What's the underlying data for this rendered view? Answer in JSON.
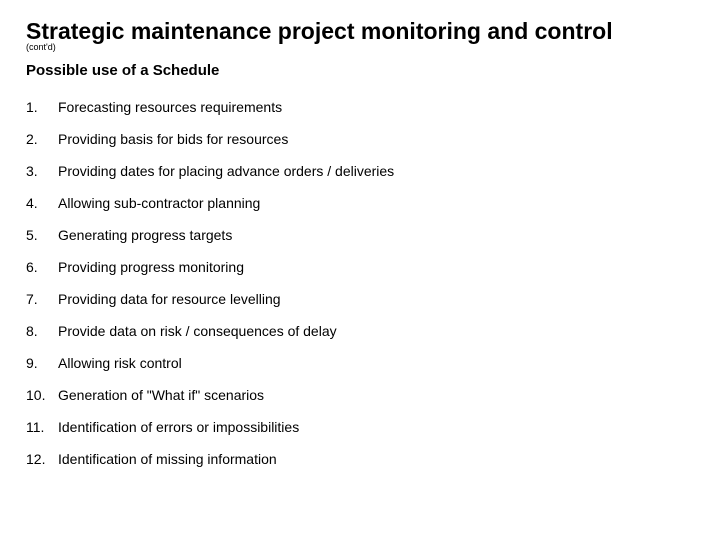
{
  "title": "Strategic maintenance project monitoring and control",
  "contd": "(cont'd)",
  "subtitle": "Possible use of a Schedule",
  "items": [
    {
      "num": "1.",
      "text": "Forecasting resources requirements"
    },
    {
      "num": "2.",
      "text": "Providing basis for bids for resources"
    },
    {
      "num": "3.",
      "text": "Providing dates for placing advance orders / deliveries"
    },
    {
      "num": "4.",
      "text": "Allowing sub-contractor planning"
    },
    {
      "num": "5.",
      "text": "Generating progress targets"
    },
    {
      "num": "6.",
      "text": "Providing progress monitoring"
    },
    {
      "num": "7.",
      "text": "Providing data for resource levelling"
    },
    {
      "num": "8.",
      "text": "Provide data on risk / consequences of delay"
    },
    {
      "num": "9.",
      "text": "Allowing risk control"
    },
    {
      "num": "10.",
      "text": "Generation of \"What if\" scenarios"
    },
    {
      "num": "11.",
      "text": "Identification of errors or impossibilities"
    },
    {
      "num": "12.",
      "text": "Identification of missing information"
    }
  ],
  "style": {
    "background_color": "#ffffff",
    "text_color": "#000000",
    "title_fontsize": 23,
    "title_weight": "bold",
    "contd_fontsize": 9,
    "subtitle_fontsize": 15,
    "subtitle_weight": "bold",
    "item_fontsize": 14,
    "row_padding_v": 8,
    "num_col_width": 28,
    "font_family": "Arial"
  }
}
